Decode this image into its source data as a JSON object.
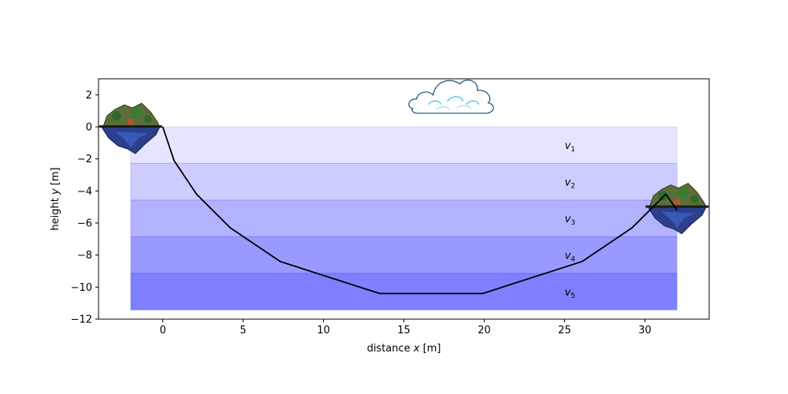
{
  "chart_data": {
    "type": "line",
    "xlabel": {
      "text": "distance ",
      "var": "x",
      "unit": " [m]"
    },
    "ylabel": {
      "text": "height ",
      "var": "y",
      "unit": " [m]"
    },
    "xlim": [
      -4,
      34
    ],
    "ylim": [
      -12,
      3
    ],
    "xticks": [
      0,
      5,
      10,
      15,
      20,
      25,
      30
    ],
    "yticks": [
      2,
      0,
      -2,
      -4,
      -6,
      -8,
      -10,
      -12
    ],
    "ytick_labels": [
      "2",
      "0",
      "−2",
      "−4",
      "−6",
      "−8",
      "−10",
      "−12"
    ],
    "grid": false,
    "path": {
      "x": [
        0,
        0.7,
        2.1,
        4.2,
        7.3,
        13.5,
        19.9,
        26.1,
        29.2,
        31.3,
        32.0
      ],
      "y": [
        0,
        -2.1,
        -4.2,
        -6.3,
        -8.4,
        -10.4,
        -10.4,
        -8.4,
        -6.3,
        -4.2,
        -5.2
      ],
      "color": "#000000"
    },
    "layers": [
      {
        "label": "v",
        "sub": "1",
        "x_range": [
          -2,
          32
        ],
        "y_range": [
          0,
          -2.28
        ],
        "alpha": 0.1
      },
      {
        "label": "v",
        "sub": "2",
        "x_range": [
          -2,
          32
        ],
        "y_range": [
          -2.28,
          -4.57
        ],
        "alpha": 0.2
      },
      {
        "label": "v",
        "sub": "3",
        "x_range": [
          -2,
          32
        ],
        "y_range": [
          -4.57,
          -6.86
        ],
        "alpha": 0.3
      },
      {
        "label": "v",
        "sub": "4",
        "x_range": [
          -2,
          32
        ],
        "y_range": [
          -6.86,
          -9.14
        ],
        "alpha": 0.4
      },
      {
        "label": "v",
        "sub": "5",
        "x_range": [
          -2,
          32
        ],
        "y_range": [
          -9.14,
          -11.43
        ],
        "alpha": 0.5
      }
    ],
    "layer_label_x": 25.4,
    "layer_color": "#0000ff",
    "pictures": [
      {
        "name": "start-island",
        "x": -2,
        "y": 0
      },
      {
        "name": "end-island",
        "x": 32,
        "y": -5.0
      },
      {
        "name": "cloud",
        "x": 18,
        "y": 1
      }
    ]
  }
}
